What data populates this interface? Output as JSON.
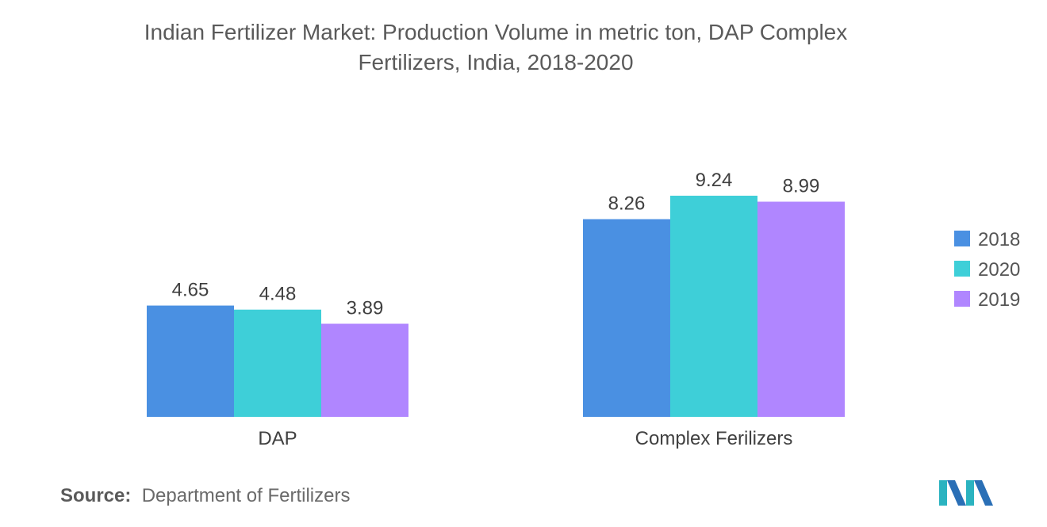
{
  "chart_data": {
    "type": "bar",
    "title": "Indian Fertilizer Market: Production Volume in metric ton, DAP Complex\nFertilizers, India, 2018-2020",
    "categories": [
      "DAP",
      "Complex Ferilizers"
    ],
    "series": [
      {
        "name": "2018",
        "color": "#4a90e2",
        "values": [
          4.65,
          8.26
        ]
      },
      {
        "name": "2020",
        "color": "#3ecfd8",
        "values": [
          4.48,
          9.24
        ]
      },
      {
        "name": "2019",
        "color": "#b086ff",
        "values": [
          3.89,
          8.99
        ]
      }
    ],
    "ylim": [
      0,
      10
    ],
    "grid": false,
    "legend_position": "right"
  },
  "source": {
    "label": "Source:",
    "text": "Department of Fertilizers"
  },
  "logo": {
    "icon": "mordor-logo-icon"
  }
}
